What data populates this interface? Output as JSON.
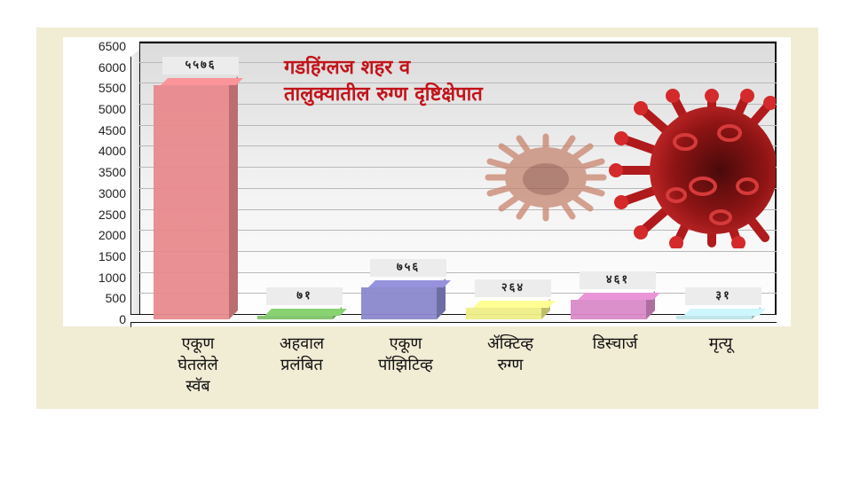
{
  "chart_data": {
    "type": "bar",
    "title": "गडहिंग्लज शहर व तालुक्यातील रुग्ण दृष्टिक्षेपात",
    "xlabel": "",
    "ylabel": "",
    "ylim": [
      0,
      6500
    ],
    "yticks": [
      "0",
      "500",
      "1000",
      "1500",
      "2000",
      "2500",
      "3000",
      "3500",
      "4000",
      "4500",
      "5000",
      "5500",
      "6000",
      "6500"
    ],
    "grid": true,
    "legend": "none",
    "categories": [
      "एकूण घेतलेले स्वॅब",
      "अहवाल प्रलंबित",
      "एकूण पॉझिटिव्ह",
      "ॲक्टिव्ह रुग्ण",
      "डिस्चार्ज",
      "मृत्यू"
    ],
    "values": [
      5576,
      71,
      756,
      264,
      461,
      31
    ],
    "value_labels": [
      "५५७६",
      "७१",
      "७५६",
      "२६४",
      "४६१",
      "३१"
    ],
    "colors": [
      "#e88a8e",
      "#7fc26a",
      "#8a88cc",
      "#eeee88",
      "#d98ac8",
      "#bfe4ea"
    ]
  },
  "title_lines": [
    "गडहिंग्लज शहर व",
    "तालुक्यातील रुग्ण दृष्टिक्षेपात"
  ],
  "x_labels": [
    [
      "एकूण",
      "घेतलेले",
      "स्वॅब"
    ],
    [
      "अहवाल",
      "प्रलंबित"
    ],
    [
      "एकूण",
      "पॉझिटिव्ह"
    ],
    [
      "ॲक्टिव्ह",
      "रुग्ण"
    ],
    [
      "डिस्चार्ज"
    ],
    [
      "मृत्यू"
    ]
  ],
  "decorations": {
    "virus_image_large": "coronavirus-red-illustration",
    "virus_image_small": "coronavirus-faded-illustration"
  }
}
